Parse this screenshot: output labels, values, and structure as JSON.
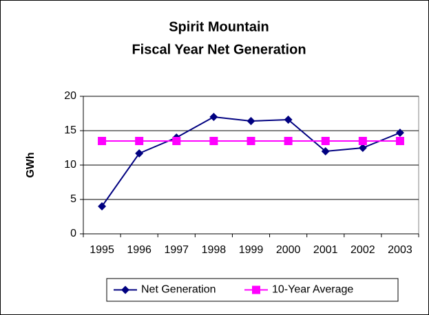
{
  "chart_data": {
    "type": "line",
    "title": [
      "Spirit Mountain",
      "Fiscal Year Net Generation"
    ],
    "y_label": "GWh",
    "categories": [
      "1995",
      "1996",
      "1997",
      "1998",
      "1999",
      "2000",
      "2001",
      "2002",
      "2003"
    ],
    "series": [
      {
        "name": "Net Generation",
        "color": "#000080",
        "marker": "diamond",
        "values": [
          4.0,
          11.7,
          14.0,
          17.0,
          16.4,
          16.6,
          12.0,
          12.5,
          14.7
        ]
      },
      {
        "name": "10-Year Average",
        "color": "#ff00ff",
        "marker": "square",
        "values": [
          13.5,
          13.5,
          13.5,
          13.5,
          13.5,
          13.5,
          13.5,
          13.5,
          13.5
        ]
      }
    ],
    "ylim": [
      0,
      20
    ],
    "yticks": [
      0,
      5,
      10,
      15,
      20
    ],
    "grid": true,
    "legend": "bottom"
  }
}
